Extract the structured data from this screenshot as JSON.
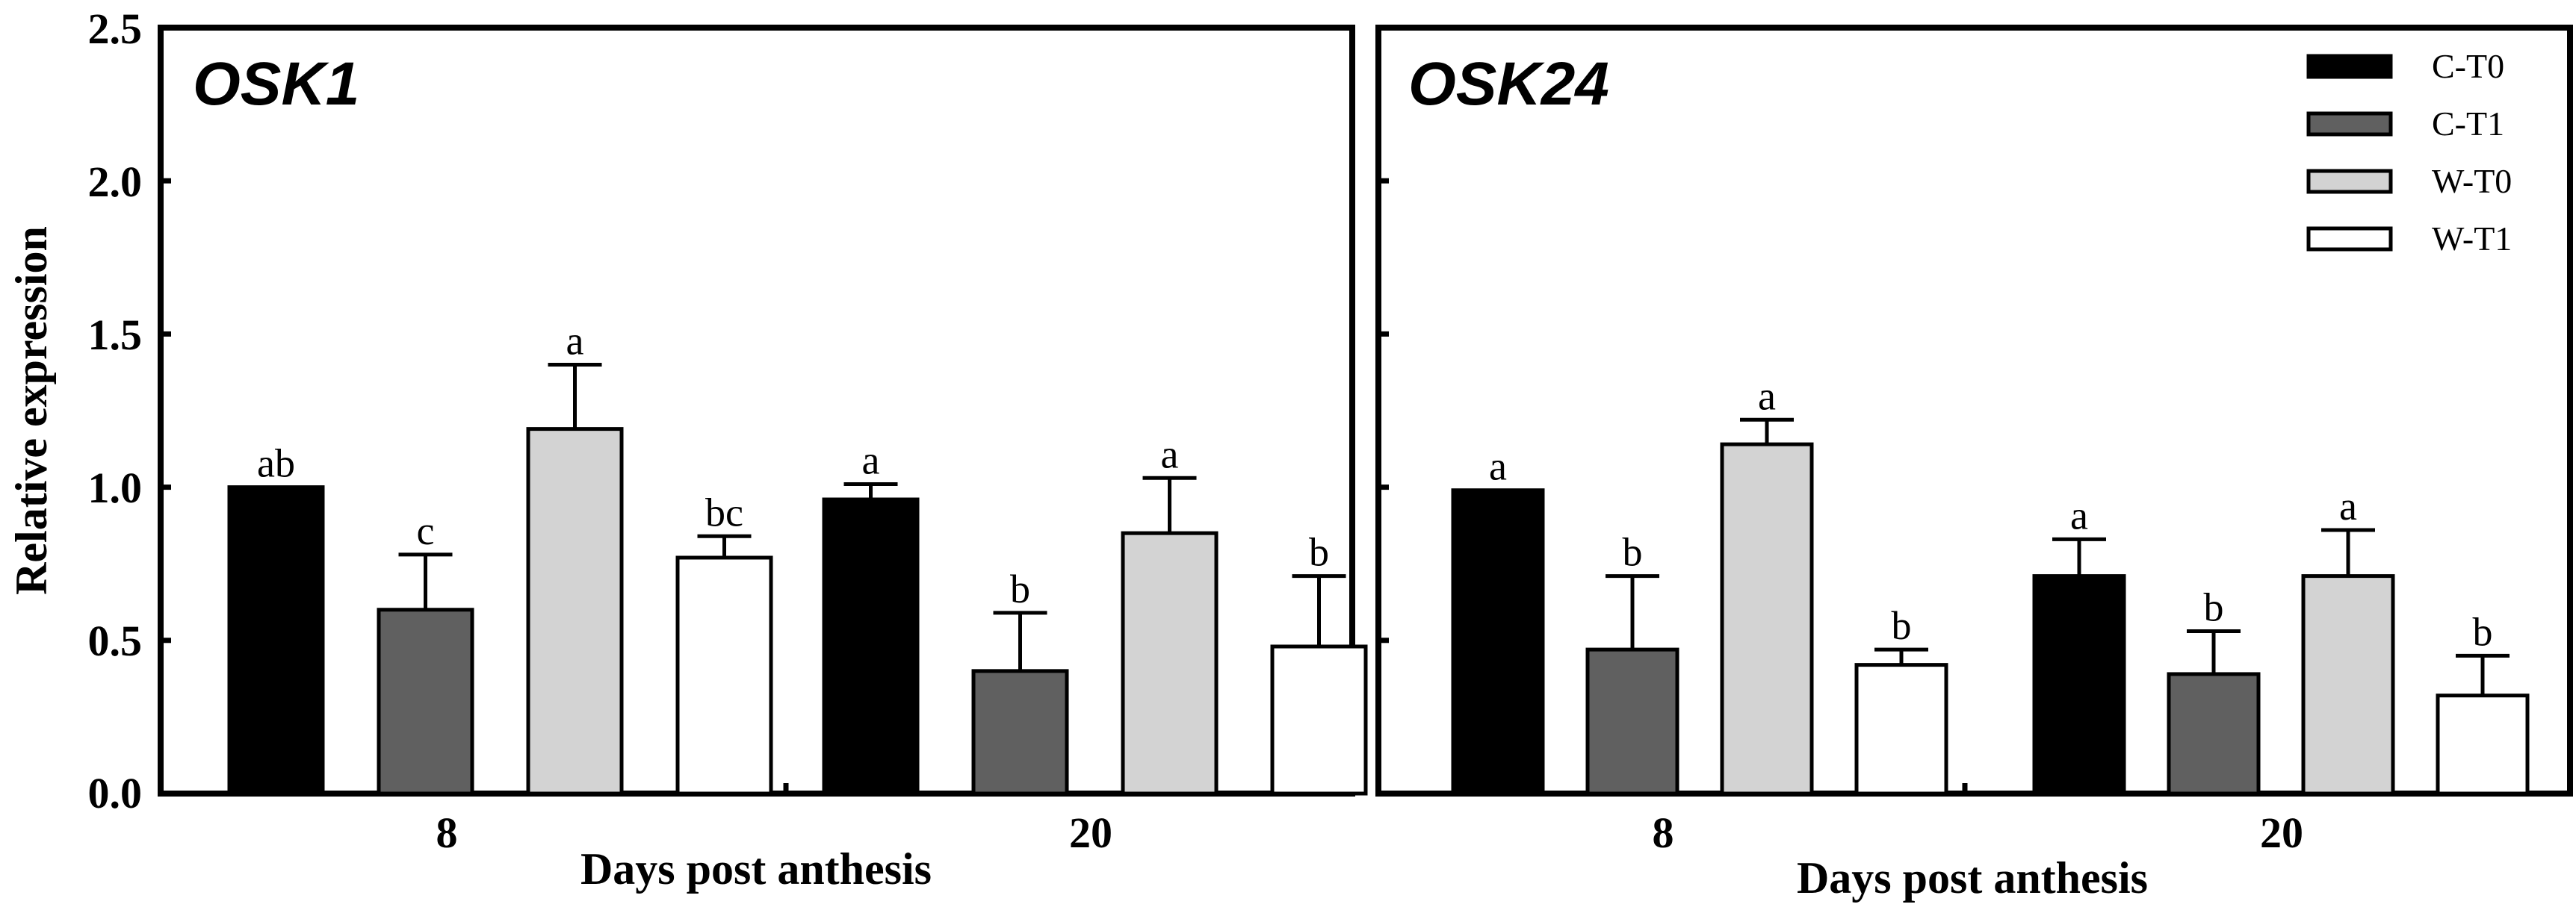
{
  "chart_data": [
    {
      "type": "bar",
      "title": "OSK1",
      "xlabel": "Days post  anthesis",
      "ylabel": "Relative expression",
      "ylim": [
        0,
        2.5
      ],
      "yticks": [
        "0.0",
        "0.5",
        "1.0",
        "1.5",
        "2.0",
        "2.5"
      ],
      "categories": [
        "8",
        "20"
      ],
      "series": [
        {
          "name": "C-T0",
          "color": "#000000",
          "values": [
            1.0,
            0.96
          ],
          "errors": [
            0.0,
            0.05
          ],
          "labels": [
            "ab",
            "a"
          ]
        },
        {
          "name": "C-T1",
          "color": "#606060",
          "values": [
            0.6,
            0.4
          ],
          "errors": [
            0.18,
            0.19
          ],
          "labels": [
            "c",
            "b"
          ]
        },
        {
          "name": "W-T0",
          "color": "#d3d3d3",
          "values": [
            1.19,
            0.85
          ],
          "errors": [
            0.21,
            0.18
          ],
          "labels": [
            "a",
            "a"
          ]
        },
        {
          "name": "W-T1",
          "color": "#ffffff",
          "values": [
            0.77,
            0.48
          ],
          "errors": [
            0.07,
            0.23
          ],
          "labels": [
            "bc",
            "b"
          ]
        }
      ]
    },
    {
      "type": "bar",
      "title": "OSK24",
      "xlabel": "Days post  anthesis",
      "ylabel": "",
      "ylim": [
        0,
        2.5
      ],
      "categories": [
        "8",
        "20"
      ],
      "legend": {
        "position": "top-right",
        "entries": [
          "C-T0",
          "C-T1",
          "W-T0",
          "W-T1"
        ]
      },
      "series": [
        {
          "name": "C-T0",
          "color": "#000000",
          "values": [
            0.99,
            0.71
          ],
          "errors": [
            0.0,
            0.12
          ],
          "labels": [
            "a",
            "a"
          ]
        },
        {
          "name": "C-T1",
          "color": "#606060",
          "values": [
            0.47,
            0.39
          ],
          "errors": [
            0.24,
            0.14
          ],
          "labels": [
            "b",
            "b"
          ]
        },
        {
          "name": "W-T0",
          "color": "#d3d3d3",
          "values": [
            1.14,
            0.71
          ],
          "errors": [
            0.08,
            0.15
          ],
          "labels": [
            "a",
            "a"
          ]
        },
        {
          "name": "W-T1",
          "color": "#ffffff",
          "values": [
            0.42,
            0.32
          ],
          "errors": [
            0.05,
            0.13
          ],
          "labels": [
            "b",
            "b"
          ]
        }
      ]
    }
  ]
}
